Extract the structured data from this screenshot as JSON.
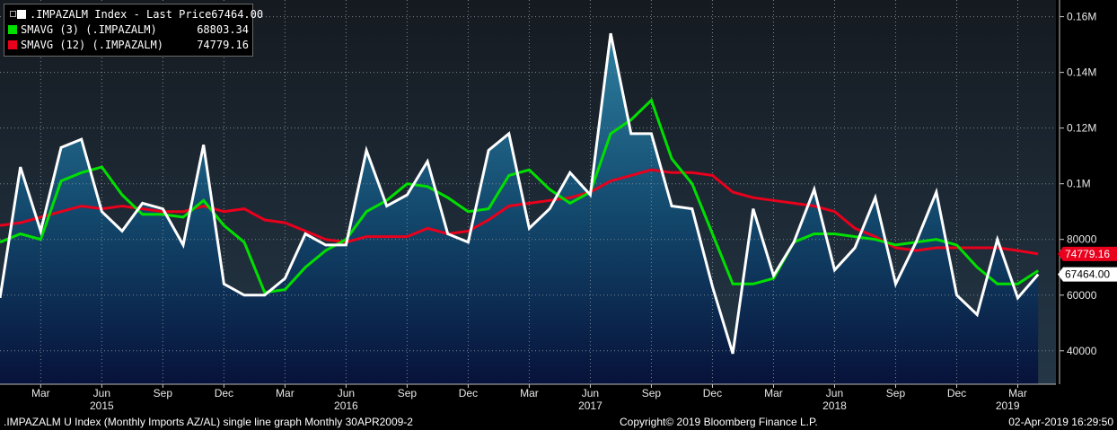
{
  "chart_data": {
    "type": "line",
    "x_start": "2014-12",
    "months": 52,
    "series": [
      {
        "name": ".IMPAZALM Index - Last Price",
        "color": "#ffffff",
        "area": true,
        "last_value": "67464.00",
        "values": [
          59000,
          106000,
          83000,
          113000,
          116000,
          90000,
          83000,
          93000,
          91000,
          78000,
          114000,
          64000,
          60000,
          60000,
          66000,
          82000,
          78000,
          78000,
          112000,
          92000,
          96000,
          108000,
          82000,
          79000,
          112000,
          118000,
          84000,
          91000,
          104000,
          96000,
          154000,
          118000,
          118000,
          92000,
          91000,
          63000,
          39000,
          91000,
          67000,
          79000,
          98000,
          69000,
          77000,
          95000,
          64000,
          79000,
          97000,
          60000,
          53000,
          80000,
          59000,
          67464
        ]
      },
      {
        "name": "SMAVG (3) (.IMPAZALM)",
        "color": "#00e000",
        "last_value": "68803.34",
        "values": [
          79000,
          82000,
          80000,
          101000,
          104000,
          106000,
          96000,
          89000,
          89000,
          88000,
          94000,
          85000,
          79000,
          61000,
          62000,
          70000,
          76000,
          80000,
          90000,
          94000,
          100000,
          99000,
          95000,
          90000,
          91000,
          103000,
          105000,
          98000,
          93000,
          97000,
          118000,
          123000,
          130000,
          109000,
          100000,
          82000,
          64000,
          64000,
          66000,
          79000,
          82000,
          82000,
          81000,
          80000,
          78000,
          79000,
          80000,
          78000,
          70000,
          64000,
          64000,
          68803
        ]
      },
      {
        "name": "SMAVG (12) (.IMPAZALM)",
        "color": "#e8001c",
        "last_value": "74779.16",
        "values": [
          85000,
          86000,
          88000,
          90000,
          92000,
          91000,
          92000,
          91000,
          90000,
          90000,
          92000,
          90000,
          91000,
          87000,
          86000,
          83000,
          80000,
          79000,
          81000,
          81000,
          81000,
          84000,
          82000,
          83000,
          87000,
          92000,
          93000,
          94000,
          95000,
          97000,
          101000,
          103000,
          105000,
          104000,
          104000,
          103000,
          97000,
          95000,
          94000,
          93000,
          92000,
          90000,
          84000,
          81000,
          77000,
          76000,
          77000,
          77000,
          77000,
          77000,
          76000,
          74779
        ]
      }
    ],
    "y_ticks": [
      {
        "value": 40000,
        "label": "40000"
      },
      {
        "value": 60000,
        "label": "60000"
      },
      {
        "value": 80000,
        "label": "80000"
      },
      {
        "value": 100000,
        "label": "0.1M"
      },
      {
        "value": 120000,
        "label": "0.12M"
      },
      {
        "value": 140000,
        "label": "0.14M"
      },
      {
        "value": 160000,
        "label": "0.16M"
      }
    ],
    "x_ticks": [
      {
        "month": 3,
        "label": "Mar"
      },
      {
        "month": 6,
        "label": "Jun"
      },
      {
        "month": 9,
        "label": "Sep"
      },
      {
        "month": 12,
        "label": "Dec"
      },
      {
        "month": 15,
        "label": "Mar"
      },
      {
        "month": 18,
        "label": "Jun"
      },
      {
        "month": 21,
        "label": "Sep"
      },
      {
        "month": 24,
        "label": "Dec"
      },
      {
        "month": 27,
        "label": "Mar"
      },
      {
        "month": 30,
        "label": "Jun"
      },
      {
        "month": 33,
        "label": "Sep"
      },
      {
        "month": 36,
        "label": "Dec"
      },
      {
        "month": 39,
        "label": "Mar"
      },
      {
        "month": 42,
        "label": "Jun"
      },
      {
        "month": 45,
        "label": "Sep"
      },
      {
        "month": 48,
        "label": "Dec"
      },
      {
        "month": 51,
        "label": "Mar"
      }
    ],
    "year_labels": [
      {
        "month": 6,
        "label": "2015"
      },
      {
        "month": 18,
        "label": "2016"
      },
      {
        "month": 30,
        "label": "2017"
      },
      {
        "month": 42,
        "label": "2018"
      },
      {
        "month": 50.5,
        "label": "2019"
      }
    ],
    "ylim": [
      28000,
      166000
    ],
    "grid": true,
    "legend": "top-left"
  },
  "footer": {
    "description": ".IMPAZALM U Index (Monthly Imports AZ/AL) single line graph  Monthly 30APR2009-2",
    "copyright": "Copyright© 2019 Bloomberg Finance L.P.",
    "timestamp": "02-Apr-2019 16:29:50"
  }
}
